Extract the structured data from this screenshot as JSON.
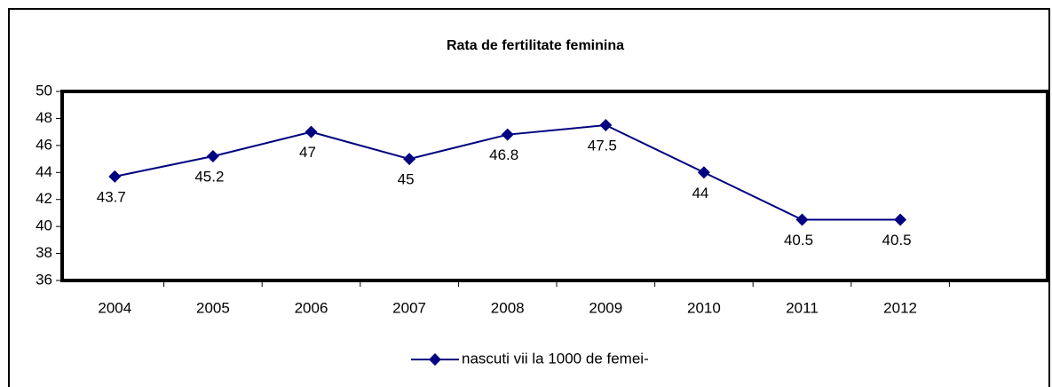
{
  "chart_data": {
    "type": "line",
    "title": "Rata de fertilitate feminina",
    "categories": [
      "2004",
      "2005",
      "2006",
      "2007",
      "2008",
      "2009",
      "2010",
      "2011",
      "2012",
      null
    ],
    "series": [
      {
        "name": "nascuti vii la 1000 de femei-",
        "color": "#000080",
        "values": [
          43.7,
          45.2,
          47,
          45,
          46.8,
          47.5,
          44,
          40.5,
          40.5,
          null
        ]
      }
    ],
    "ylim": [
      36,
      50
    ],
    "yticks": [
      36,
      38,
      40,
      42,
      44,
      46,
      48,
      50
    ],
    "grid": false,
    "legend": "bottom"
  }
}
